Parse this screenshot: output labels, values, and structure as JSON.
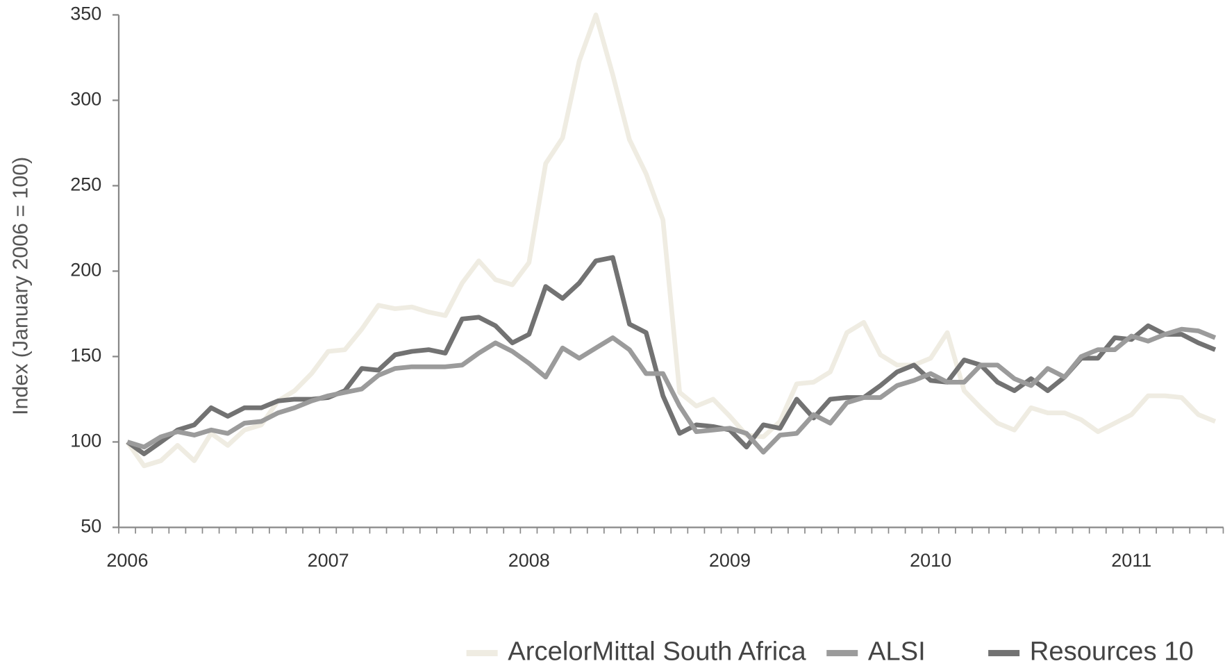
{
  "chart_data": {
    "type": "line",
    "y_label": "Index (January 2006 = 100)",
    "x": [
      2006,
      2006.083,
      2006.167,
      2006.25,
      2006.333,
      2006.417,
      2006.5,
      2006.583,
      2006.667,
      2006.75,
      2006.833,
      2006.917,
      2007,
      2007.083,
      2007.167,
      2007.25,
      2007.333,
      2007.417,
      2007.5,
      2007.583,
      2007.667,
      2007.75,
      2007.833,
      2007.917,
      2008,
      2008.083,
      2008.167,
      2008.25,
      2008.333,
      2008.417,
      2008.5,
      2008.583,
      2008.667,
      2008.75,
      2008.833,
      2008.917,
      2009,
      2009.083,
      2009.167,
      2009.25,
      2009.333,
      2009.417,
      2009.5,
      2009.583,
      2009.667,
      2009.75,
      2009.833,
      2009.917,
      2010,
      2010.083,
      2010.167,
      2010.25,
      2010.333,
      2010.417,
      2010.5,
      2010.583,
      2010.667,
      2010.75,
      2010.833,
      2010.917,
      2011,
      2011.083,
      2011.167,
      2011.25,
      2011.333,
      2011.417
    ],
    "series": [
      {
        "name": "ArcelorMittal South Africa",
        "color": "#efece2",
        "values": [
          100,
          86,
          89,
          98,
          89,
          105,
          98,
          107,
          110,
          124,
          130,
          140,
          153,
          154,
          166,
          180,
          178,
          179,
          176,
          174,
          193,
          206,
          195,
          192,
          205,
          263,
          278,
          323,
          350,
          315,
          277,
          257,
          230,
          129,
          121,
          125,
          115,
          104,
          103,
          112,
          134,
          135,
          141,
          164,
          170,
          151,
          145,
          145,
          149,
          164,
          130,
          120,
          111,
          107,
          120,
          117,
          117,
          113,
          106,
          111,
          116,
          127,
          127,
          126,
          116,
          112
        ]
      },
      {
        "name": "ALSI",
        "color": "#9b9b9b",
        "values": [
          100,
          97,
          103,
          106,
          104,
          107,
          105,
          111,
          112,
          117,
          120,
          124,
          127,
          129,
          131,
          139,
          143,
          144,
          144,
          144,
          145,
          152,
          158,
          153,
          146,
          138,
          155,
          149,
          155,
          161,
          154,
          140,
          140,
          121,
          106,
          107,
          108,
          105,
          94,
          104,
          105,
          116,
          111,
          123,
          126,
          126,
          133,
          136,
          140,
          135,
          135,
          145,
          145,
          137,
          133,
          143,
          138,
          150,
          154,
          154,
          162,
          159,
          163,
          166,
          165,
          161
        ]
      },
      {
        "name": "Resources 10",
        "color": "#727272",
        "values": [
          100,
          93,
          100,
          107,
          110,
          120,
          115,
          120,
          120,
          124,
          125,
          125,
          126,
          130,
          143,
          142,
          151,
          153,
          154,
          152,
          172,
          173,
          168,
          158,
          163,
          191,
          184,
          193,
          206,
          208,
          169,
          164,
          127,
          105,
          110,
          109,
          107,
          97,
          110,
          108,
          125,
          114,
          125,
          126,
          126,
          133,
          141,
          145,
          136,
          135,
          148,
          145,
          135,
          130,
          137,
          130,
          138,
          149,
          149,
          161,
          160,
          168,
          163,
          163,
          158,
          154
        ]
      }
    ],
    "xlim": [
      2005.957,
      2011.458
    ],
    "xticks": [
      2006,
      2007,
      2008,
      2009,
      2010,
      2011
    ],
    "ylim": [
      50,
      350
    ],
    "yticks": [
      50,
      100,
      150,
      200,
      250,
      300,
      350
    ],
    "grid": false,
    "legend": "bottom"
  }
}
